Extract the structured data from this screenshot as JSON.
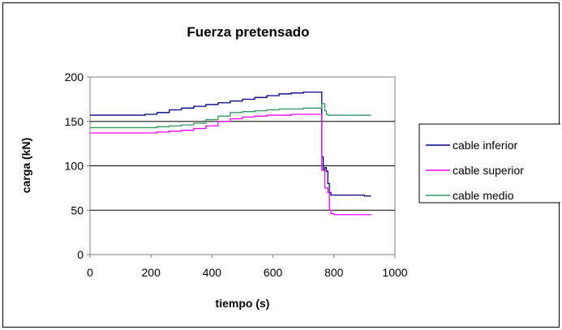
{
  "chart_data": {
    "type": "line",
    "title": "Fuerza pretensado",
    "xlabel": "tiempo (s)",
    "ylabel": "carga (kN)",
    "xlim": [
      0,
      1000
    ],
    "ylim": [
      0,
      200
    ],
    "xticks": [
      "0",
      "200",
      "400",
      "600",
      "800",
      "1000"
    ],
    "yticks": [
      "0",
      "50",
      "100",
      "150",
      "200"
    ],
    "grid": "horizontal",
    "legend_position": "right",
    "series": [
      {
        "name": "cable inferior",
        "color": "#000080",
        "x": [
          0,
          180,
          220,
          260,
          300,
          340,
          380,
          420,
          460,
          500,
          540,
          580,
          620,
          660,
          700,
          740,
          757,
          760,
          765,
          770,
          775,
          780,
          785,
          790,
          800,
          850,
          900,
          922
        ],
        "y": [
          157,
          158,
          160,
          163,
          165,
          167,
          169,
          171,
          173,
          175,
          177,
          179,
          181,
          182,
          183,
          183,
          183,
          110,
          95,
          98,
          94,
          80,
          70,
          67,
          67,
          67,
          66,
          66
        ]
      },
      {
        "name": "cable superior",
        "color": "#ff00ff",
        "x": [
          0,
          180,
          220,
          260,
          300,
          340,
          380,
          420,
          460,
          500,
          540,
          580,
          620,
          660,
          700,
          740,
          757,
          760,
          770,
          780,
          785,
          790,
          800,
          850,
          900,
          922
        ],
        "y": [
          137,
          137,
          138,
          139,
          140,
          142,
          145,
          150,
          153,
          155,
          156,
          157,
          157,
          158,
          158,
          158,
          158,
          95,
          75,
          70,
          50,
          46,
          45,
          45,
          45,
          45
        ]
      },
      {
        "name": "cable medio",
        "color": "#339966",
        "x": [
          0,
          180,
          220,
          260,
          300,
          340,
          380,
          420,
          460,
          500,
          540,
          580,
          620,
          660,
          700,
          740,
          757,
          760,
          765,
          770,
          775,
          780,
          790,
          800,
          850,
          900,
          922
        ],
        "y": [
          143,
          143,
          144,
          145,
          146,
          148,
          152,
          156,
          160,
          161,
          162,
          163,
          164,
          164,
          165,
          165,
          165,
          170,
          170,
          162,
          158,
          157,
          157,
          157,
          157,
          157,
          157
        ]
      }
    ]
  }
}
